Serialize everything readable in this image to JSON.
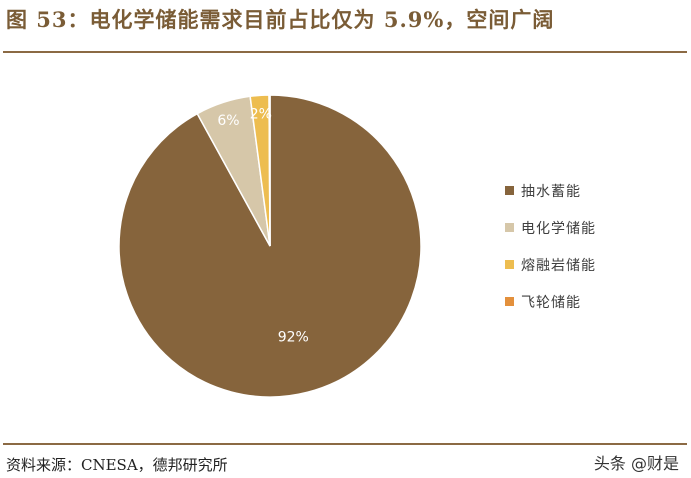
{
  "header": {
    "title": "图 53：电化学储能需求目前占比仅为 5.9%，空间广阔"
  },
  "chart_data": {
    "type": "pie",
    "title": "",
    "categories": [
      "抽水蓄能",
      "电化学储能",
      "熔融岩储能",
      "飞轮储能"
    ],
    "values": [
      92,
      5.9,
      2,
      0.1
    ],
    "data_labels": [
      "92%",
      "6%",
      "2%",
      ""
    ],
    "colors": [
      "#86643c",
      "#d6c7a9",
      "#edbd50",
      "#e3903c"
    ],
    "legend_position": "right"
  },
  "footer": {
    "source": "资料来源：CNESA，德邦研究所"
  },
  "watermark": {
    "text": "头条 @财是"
  }
}
